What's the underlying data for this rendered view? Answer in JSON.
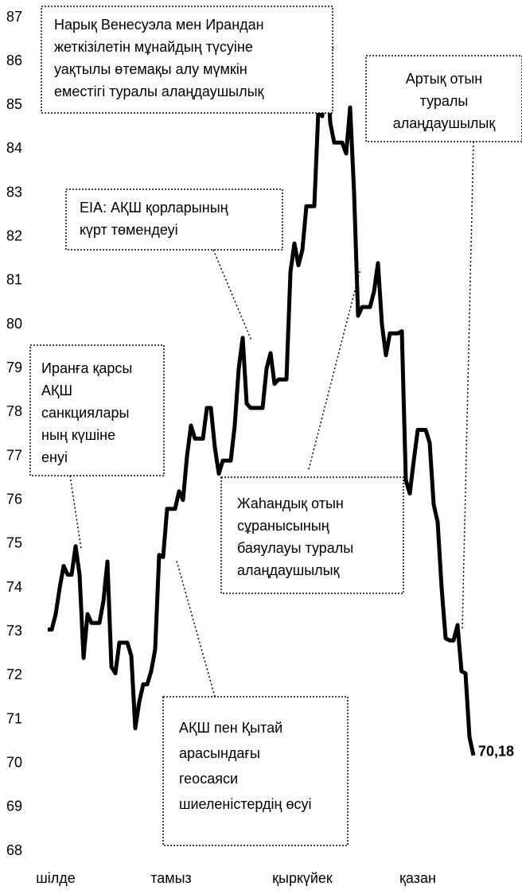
{
  "chart_data": {
    "type": "line",
    "values": [
      73.05,
      73.05,
      73.4,
      74.0,
      74.5,
      74.3,
      74.3,
      74.95,
      74.3,
      72.4,
      73.4,
      73.2,
      73.2,
      73.2,
      73.7,
      74.6,
      72.2,
      72.05,
      72.75,
      72.75,
      72.75,
      72.45,
      70.8,
      71.4,
      71.8,
      71.8,
      72.1,
      72.6,
      74.75,
      74.7,
      75.8,
      75.8,
      75.8,
      76.2,
      76.0,
      77.0,
      77.7,
      77.4,
      77.4,
      77.4,
      78.1,
      78.1,
      77.2,
      76.6,
      76.9,
      76.9,
      76.9,
      77.7,
      79.0,
      79.7,
      78.2,
      78.1,
      78.1,
      78.1,
      78.1,
      79.0,
      79.35,
      78.65,
      78.75,
      78.75,
      78.75,
      81.2,
      81.85,
      81.35,
      81.7,
      82.7,
      82.7,
      82.7,
      84.85,
      84.75,
      86.3,
      84.6,
      84.15,
      84.15,
      84.15,
      83.9,
      84.95,
      83.0,
      80.2,
      80.4,
      80.4,
      80.4,
      80.75,
      81.4,
      80.0,
      79.3,
      79.8,
      79.8,
      79.8,
      79.85,
      76.45,
      76.15,
      76.9,
      77.6,
      77.6,
      77.6,
      77.3,
      75.9,
      75.5,
      74.0,
      72.85,
      72.8,
      72.8,
      73.15,
      72.1,
      72.05,
      70.6,
      70.18
    ],
    "color": "#000000",
    "last_value_label": "70,18",
    "xlim": [
      0,
      107
    ],
    "xticks": [
      {
        "value": 2,
        "label": "шілде"
      },
      {
        "value": 31,
        "label": "тамыз"
      },
      {
        "value": 64,
        "label": "қыркүйек"
      },
      {
        "value": 93,
        "label": "қазан"
      }
    ],
    "ylim": [
      68,
      87
    ],
    "yticks": [
      68,
      69,
      70,
      71,
      72,
      73,
      74,
      75,
      76,
      77,
      78,
      79,
      80,
      81,
      82,
      83,
      84,
      85,
      86,
      87
    ],
    "annotations": [
      {
        "lines": [
          "Нарық Венесуэла мен Ирандан",
          "жеткізілетін мұнайдың түсуіне",
          "уақтылы өтемақы алу мүмкін",
          "еместігі туралы алаңдаушылық"
        ]
      },
      {
        "lines": [
          "Артық отын",
          "туралы",
          "алаңдаушылық"
        ]
      },
      {
        "lines": [
          "EIA: АҚШ қорларының",
          "күрт төмендеуі"
        ]
      },
      {
        "lines": [
          "Иранға қарсы",
          "АҚШ",
          "санкциялары",
          "ның күшіне",
          "енуі"
        ]
      },
      {
        "lines": [
          "Жаһандық отын",
          "сұранысының",
          "баяулауы туралы",
          "алаңдаушылық"
        ]
      },
      {
        "lines": [
          "АҚШ пен Қытай",
          "арасындағы",
          "геосаяси",
          "шиеленістердің өсуі"
        ]
      }
    ]
  }
}
